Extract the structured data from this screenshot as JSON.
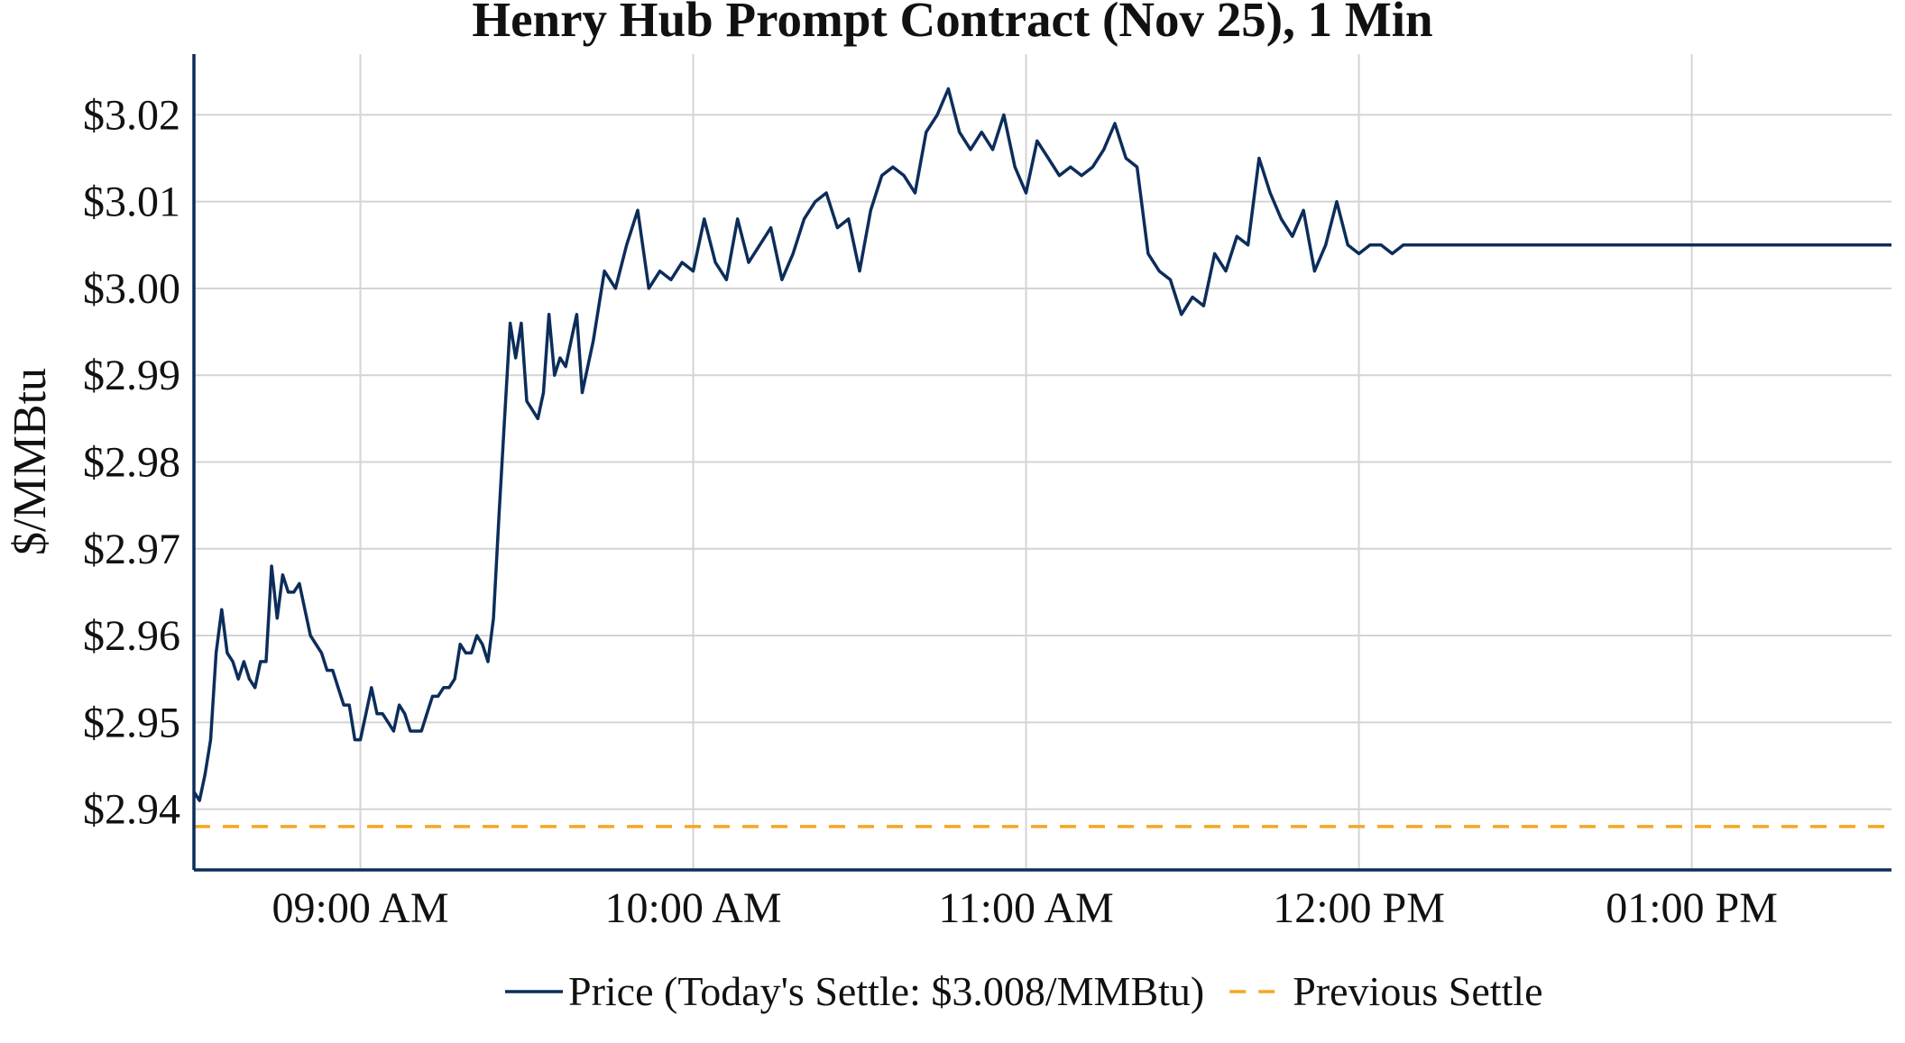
{
  "chart_data": {
    "type": "line",
    "title": "Henry Hub Prompt Contract (Nov 25), 1 Min",
    "xlabel": "",
    "ylabel": "$/MMBtu",
    "x_ticks": [
      "09:00 AM",
      "10:00 AM",
      "11:00 AM",
      "12:00 PM",
      "01:00 PM"
    ],
    "y_ticks": [
      "$2.94",
      "$2.95",
      "$2.96",
      "$2.97",
      "$2.98",
      "$2.99",
      "$3.00",
      "$3.01",
      "$3.02"
    ],
    "ylim": [
      2.933,
      3.027
    ],
    "xlim": [
      "08:30",
      "13:36"
    ],
    "grid": true,
    "legend_position": "bottom-center",
    "series": [
      {
        "name": "Price (Today's Settle: $3.008/MMBtu)",
        "color": "#0c2d5a",
        "style": "solid",
        "x": [
          "08:30",
          "08:31",
          "08:32",
          "08:33",
          "08:34",
          "08:35",
          "08:36",
          "08:37",
          "08:38",
          "08:39",
          "08:40",
          "08:41",
          "08:42",
          "08:43",
          "08:44",
          "08:45",
          "08:46",
          "08:47",
          "08:48",
          "08:49",
          "08:50",
          "08:51",
          "08:52",
          "08:53",
          "08:54",
          "08:55",
          "08:56",
          "08:57",
          "08:58",
          "08:59",
          "09:00",
          "09:01",
          "09:02",
          "09:03",
          "09:04",
          "09:05",
          "09:06",
          "09:07",
          "09:08",
          "09:09",
          "09:10",
          "09:11",
          "09:12",
          "09:13",
          "09:14",
          "09:15",
          "09:16",
          "09:17",
          "09:18",
          "09:19",
          "09:20",
          "09:21",
          "09:22",
          "09:23",
          "09:24",
          "09:25",
          "09:26",
          "09:27",
          "09:28",
          "09:29",
          "09:30",
          "09:31",
          "09:32",
          "09:33",
          "09:34",
          "09:35",
          "09:36",
          "09:37",
          "09:38",
          "09:39",
          "09:40",
          "09:42",
          "09:44",
          "09:46",
          "09:48",
          "09:50",
          "09:52",
          "09:54",
          "09:56",
          "09:58",
          "10:00",
          "10:02",
          "10:04",
          "10:06",
          "10:08",
          "10:10",
          "10:12",
          "10:14",
          "10:16",
          "10:18",
          "10:20",
          "10:22",
          "10:24",
          "10:26",
          "10:28",
          "10:30",
          "10:32",
          "10:34",
          "10:36",
          "10:38",
          "10:40",
          "10:42",
          "10:44",
          "10:46",
          "10:48",
          "10:50",
          "10:52",
          "10:54",
          "10:56",
          "10:58",
          "11:00",
          "11:02",
          "11:04",
          "11:06",
          "11:08",
          "11:10",
          "11:12",
          "11:14",
          "11:16",
          "11:18",
          "11:20",
          "11:22",
          "11:24",
          "11:26",
          "11:28",
          "11:30",
          "11:32",
          "11:34",
          "11:36",
          "11:38",
          "11:40",
          "11:42",
          "11:44",
          "11:46",
          "11:48",
          "11:50",
          "11:52",
          "11:54",
          "11:56",
          "11:58",
          "12:00",
          "12:02",
          "12:04",
          "12:06",
          "12:08",
          "12:10",
          "12:12",
          "12:14",
          "12:16",
          "12:18",
          "12:20",
          "12:22",
          "12:24",
          "12:26",
          "12:28",
          "12:30",
          "12:32",
          "12:34",
          "12:36",
          "12:38",
          "12:40",
          "12:42",
          "12:44",
          "12:46",
          "12:48",
          "12:50",
          "12:52",
          "12:54",
          "12:56",
          "12:58",
          "13:00",
          "13:02",
          "13:04",
          "13:06",
          "13:08",
          "13:10",
          "13:12",
          "13:14",
          "13:16",
          "13:18",
          "13:20",
          "13:22",
          "13:24",
          "13:26",
          "13:28",
          "13:30",
          "13:32",
          "13:34",
          "13:36"
        ],
        "values": [
          2.942,
          2.941,
          2.944,
          2.948,
          2.958,
          2.963,
          2.958,
          2.957,
          2.955,
          2.957,
          2.955,
          2.954,
          2.957,
          2.957,
          2.968,
          2.962,
          2.967,
          2.965,
          2.965,
          2.966,
          2.963,
          2.96,
          2.959,
          2.958,
          2.956,
          2.956,
          2.954,
          2.952,
          2.952,
          2.948,
          2.948,
          2.951,
          2.954,
          2.951,
          2.951,
          2.95,
          2.949,
          2.952,
          2.951,
          2.949,
          2.949,
          2.949,
          2.951,
          2.953,
          2.953,
          2.954,
          2.954,
          2.955,
          2.959,
          2.958,
          2.958,
          2.96,
          2.959,
          2.957,
          2.962,
          2.974,
          2.985,
          2.996,
          2.992,
          2.996,
          2.987,
          2.986,
          2.985,
          2.988,
          2.997,
          2.99,
          2.992,
          2.991,
          2.994,
          2.997,
          2.988,
          2.994,
          3.002,
          3.0,
          3.005,
          3.009,
          3.0,
          3.002,
          3.001,
          3.003,
          3.002,
          3.008,
          3.003,
          3.001,
          3.008,
          3.003,
          3.005,
          3.007,
          3.001,
          3.004,
          3.008,
          3.01,
          3.011,
          3.007,
          3.008,
          3.002,
          3.009,
          3.013,
          3.014,
          3.013,
          3.011,
          3.018,
          3.02,
          3.023,
          3.018,
          3.016,
          3.018,
          3.016,
          3.02,
          3.014,
          3.011,
          3.017,
          3.015,
          3.013,
          3.014,
          3.013,
          3.014,
          3.016,
          3.019,
          3.015,
          3.014,
          3.004,
          3.002,
          3.001,
          2.997,
          2.999,
          2.998,
          3.004,
          3.002,
          3.006,
          3.005,
          3.015,
          3.011,
          3.008,
          3.006,
          3.009,
          3.002,
          3.005,
          3.01,
          3.005,
          3.004,
          3.005,
          3.005,
          3.004,
          3.005,
          3.005,
          3.005,
          3.005,
          3.005,
          3.005,
          3.005,
          3.005,
          3.005,
          3.005,
          3.005,
          3.005,
          3.005,
          3.005,
          3.005,
          3.005,
          3.005,
          3.005,
          3.005,
          3.005,
          3.005,
          3.005,
          3.005,
          3.005,
          3.005,
          3.005,
          3.005,
          3.005,
          3.005,
          3.005,
          3.005,
          3.005,
          3.005,
          3.005,
          3.005,
          3.005,
          3.005,
          3.005,
          3.005,
          3.005,
          3.005,
          3.005,
          3.005,
          3.005,
          3.005
        ]
      },
      {
        "name": "Previous Settle",
        "color": "#f5a623",
        "style": "dashed",
        "x": [
          "08:30",
          "13:36"
        ],
        "values": [
          2.938,
          2.938
        ]
      }
    ]
  }
}
